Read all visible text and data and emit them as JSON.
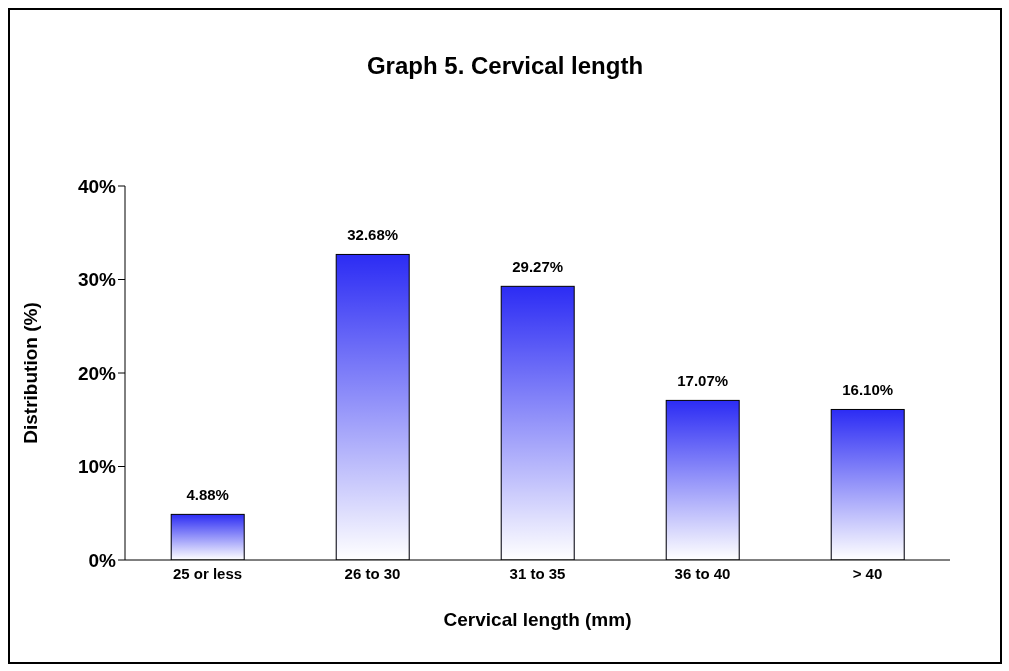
{
  "chart_data": {
    "type": "bar",
    "title": "Graph 5. Cervical length",
    "xlabel": "Cervical length (mm)",
    "ylabel": "Distribution (%)",
    "categories": [
      "25 or less",
      "26 to 30",
      "31 to 35",
      "36 to 40",
      "> 40"
    ],
    "values": [
      4.88,
      32.68,
      29.27,
      17.07,
      16.1
    ],
    "value_labels": [
      "4.88%",
      "32.68%",
      "29.27%",
      "17.07%",
      "16.10%"
    ],
    "color": "#2c2cf4",
    "ylim": [
      0,
      40
    ],
    "yticks": [
      {
        "value": 0,
        "label": "0%"
      },
      {
        "value": 10,
        "label": "10%"
      },
      {
        "value": 20,
        "label": "20%"
      },
      {
        "value": 30,
        "label": "30%"
      },
      {
        "value": 40,
        "label": "40%"
      }
    ],
    "grid": false,
    "legend": false
  }
}
